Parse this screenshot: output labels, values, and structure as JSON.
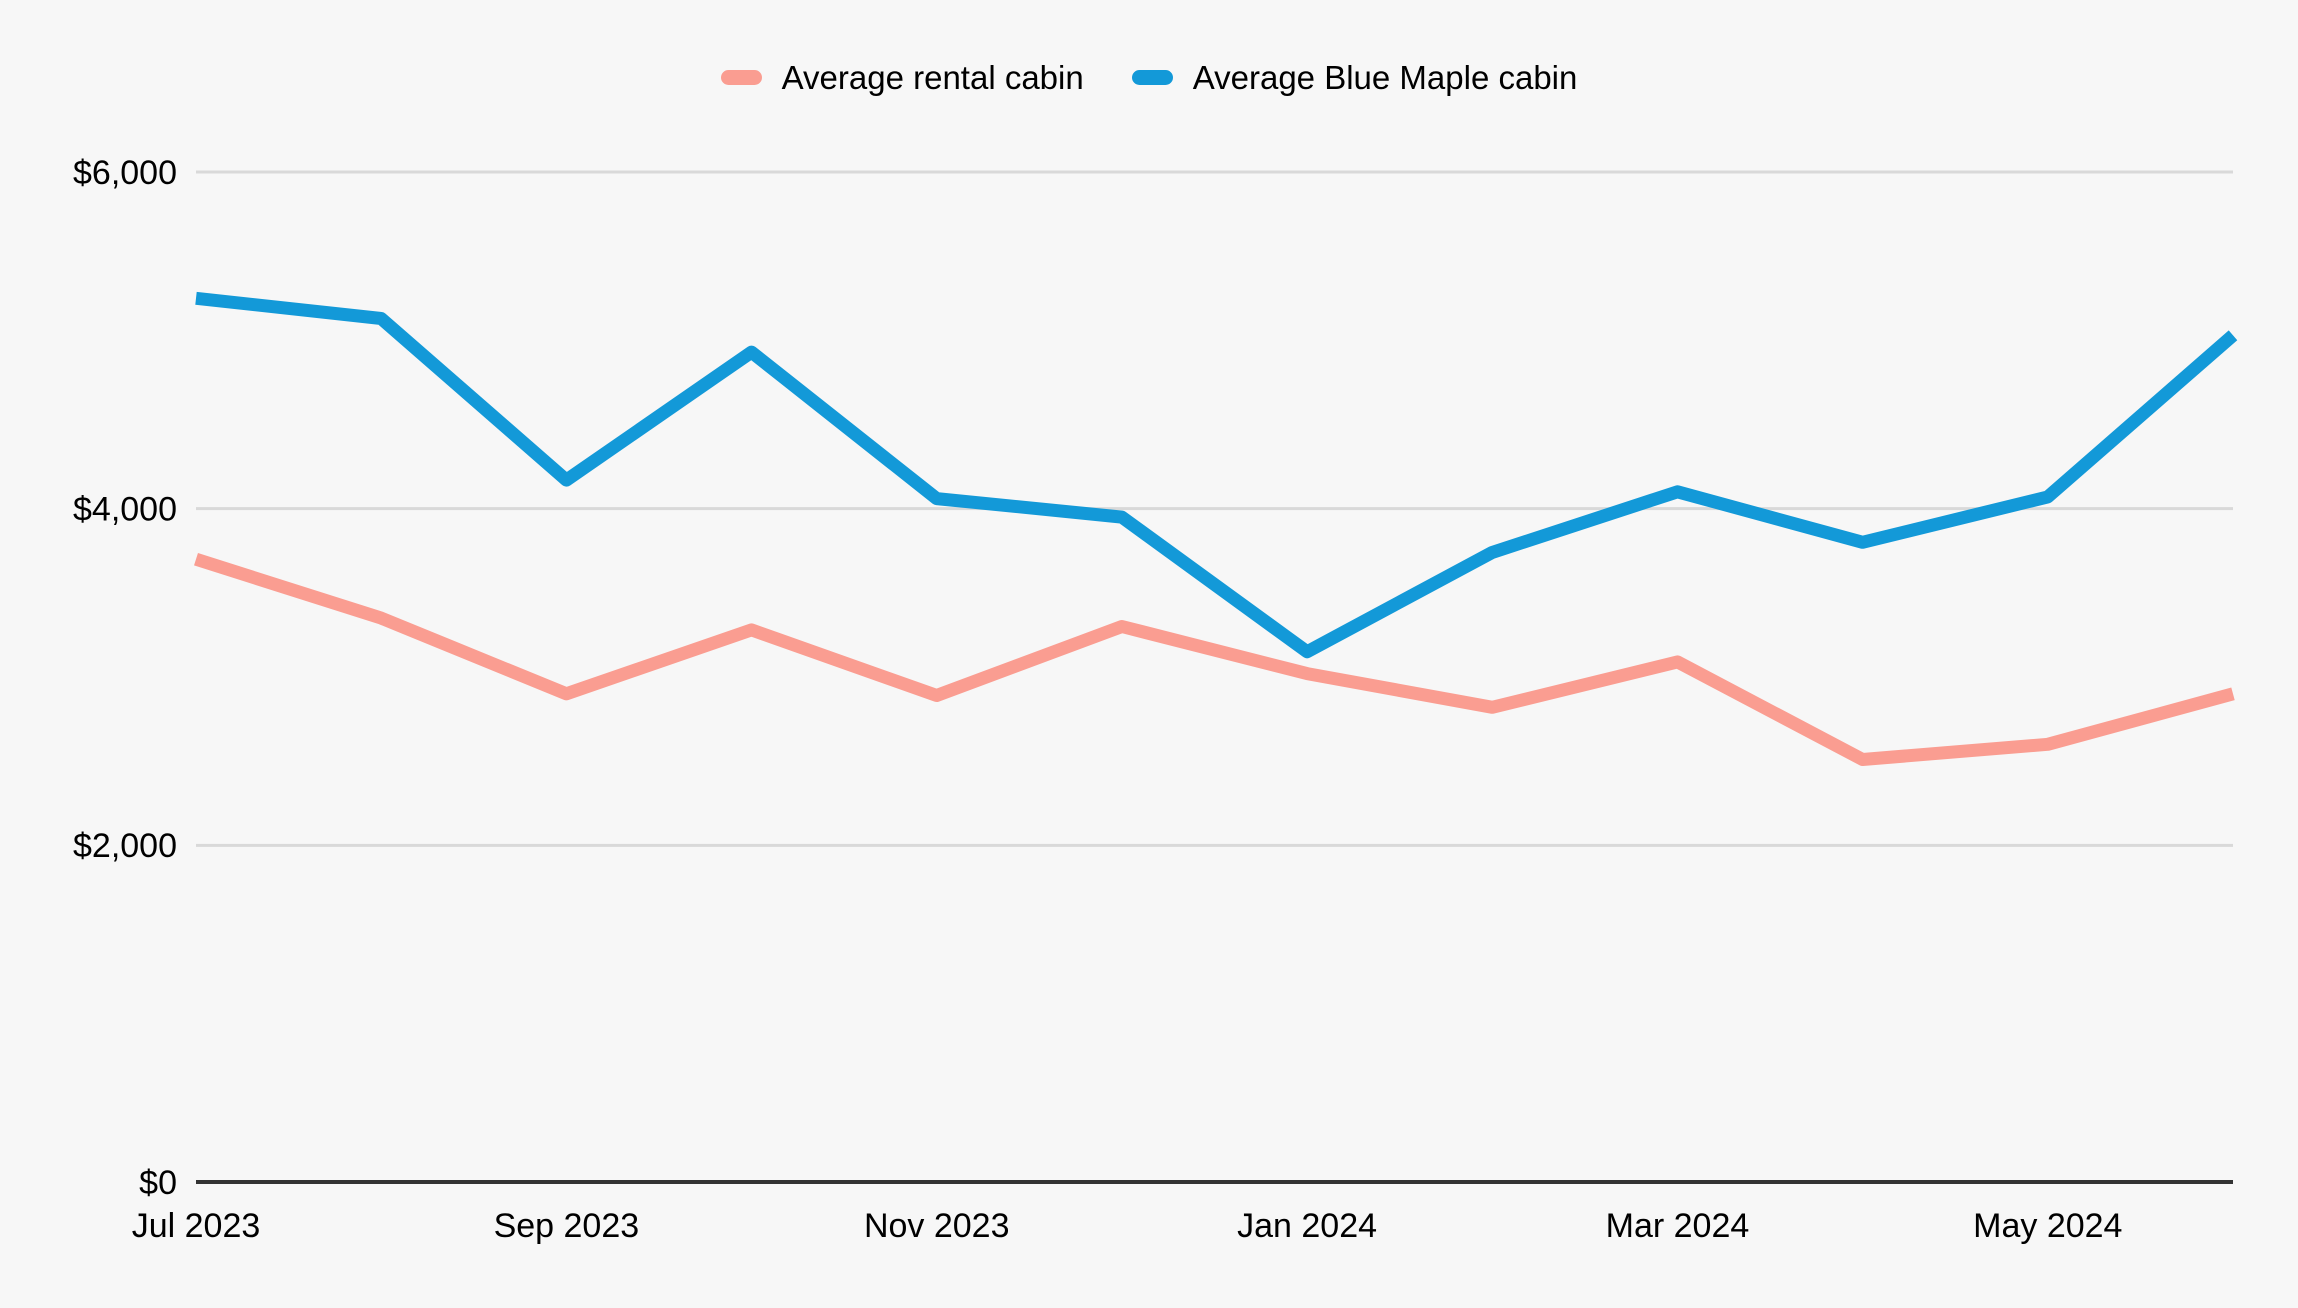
{
  "chart_data": {
    "type": "line",
    "title": "",
    "categories": [
      "Jul 2023",
      "Aug 2023",
      "Sep 2023",
      "Oct 2023",
      "Nov 2023",
      "Dec 2023",
      "Jan 2024",
      "Feb 2024",
      "Mar 2024",
      "Apr 2024",
      "May 2024",
      "Jun 2024"
    ],
    "series": [
      {
        "name": "Average rental cabin",
        "color": "#fa9d91",
        "values": [
          3700,
          3350,
          2900,
          3280,
          2890,
          3300,
          3020,
          2820,
          3090,
          2510,
          2600,
          2900
        ]
      },
      {
        "name": "Average Blue Maple cabin",
        "color": "#1399d8",
        "values": [
          5250,
          5130,
          4170,
          4930,
          4060,
          3950,
          3150,
          3740,
          4100,
          3800,
          4070,
          5030
        ]
      }
    ],
    "ylim": [
      0,
      6000
    ],
    "yticks": [
      0,
      2000,
      4000,
      6000
    ],
    "ytick_labels": [
      "$0",
      "$2,000",
      "$4,000",
      "$6,000"
    ],
    "xtick_labels_shown": [
      "Jul 2023",
      "Sep 2023",
      "Nov 2023",
      "Jan 2024",
      "Mar 2024",
      "May 2024"
    ],
    "xtick_shown_every": 2,
    "grid": "horizontal",
    "legend_position": "top-center"
  },
  "colors": {
    "background": "#f7f7f7",
    "gridline": "#d9d9d9",
    "zero_axis": "#333333",
    "text": "#000000"
  }
}
